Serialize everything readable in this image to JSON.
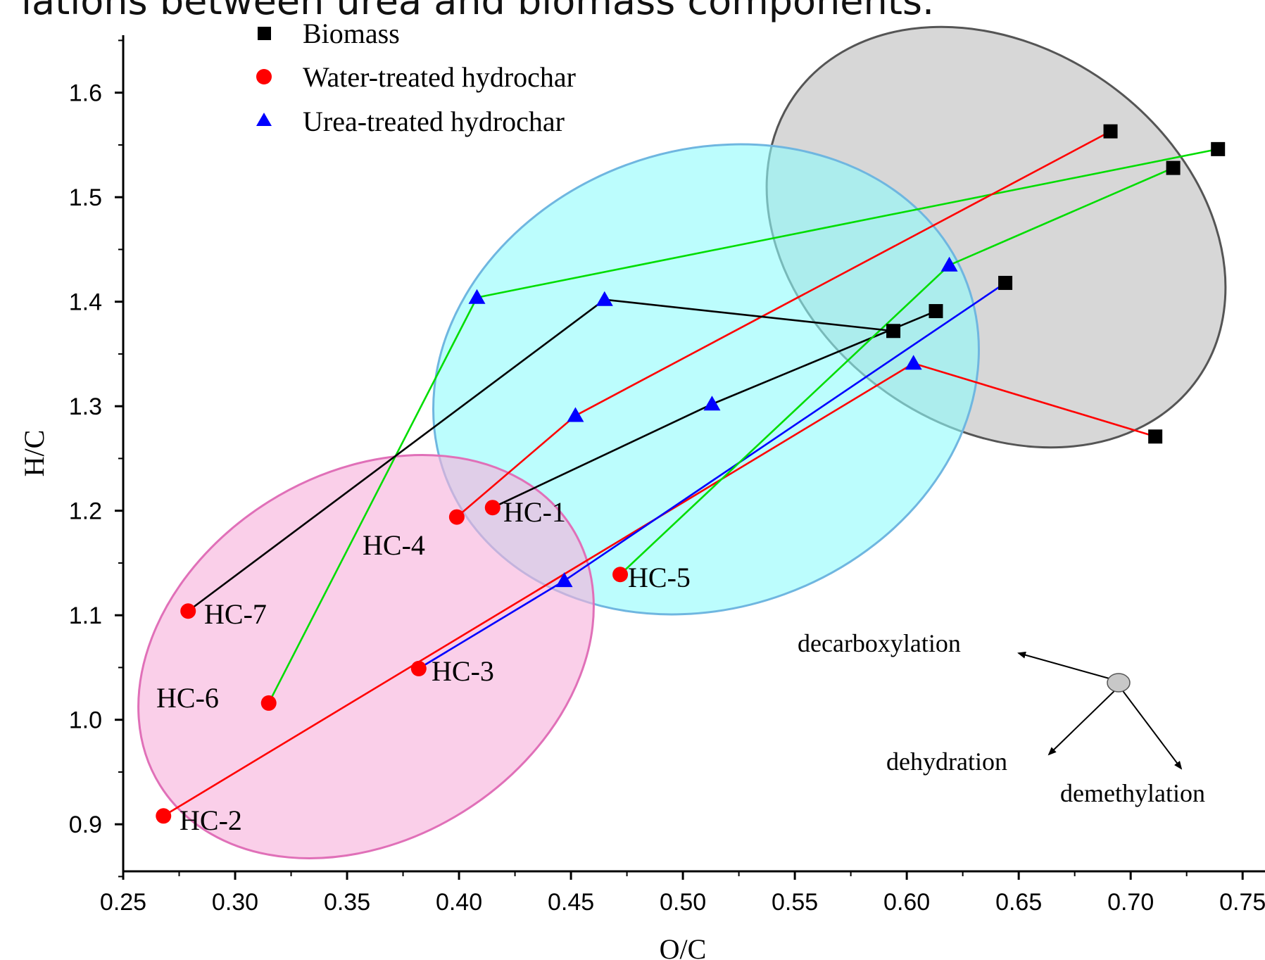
{
  "page_heading_fragment": "lations between urea and biomass components.",
  "chart_data": {
    "type": "scatter",
    "xlabel": "O/C",
    "ylabel": "H/C",
    "xlim": [
      0.25,
      0.76
    ],
    "ylim": [
      0.855,
      1.655
    ],
    "x_ticks": [
      0.25,
      0.3,
      0.35,
      0.4,
      0.45,
      0.5,
      0.55,
      0.6,
      0.65,
      0.7,
      0.75
    ],
    "x_tick_labels": [
      "0.25",
      "0.30",
      "0.35",
      "0.40",
      "0.45",
      "0.50",
      "0.55",
      "0.60",
      "0.65",
      "0.70",
      "0.75"
    ],
    "y_ticks": [
      0.9,
      1.0,
      1.1,
      1.2,
      1.3,
      1.4,
      1.5,
      1.6
    ],
    "y_tick_labels": [
      "0.9",
      "1.0",
      "1.1",
      "1.2",
      "1.3",
      "1.4",
      "1.5",
      "1.6"
    ],
    "grid": false,
    "legend_position": "top-left",
    "legend": [
      {
        "label": "Biomass",
        "marker": "square",
        "color": "#000000"
      },
      {
        "label": "Water-treated hydrochar",
        "marker": "circle",
        "color": "#ff0000"
      },
      {
        "label": "Urea-treated hydrochar",
        "marker": "triangle",
        "color": "#0000ff"
      }
    ],
    "regions": [
      {
        "group": "biomass",
        "fill": "#c8c8c8",
        "stroke": "#555555"
      },
      {
        "group": "urea-treated",
        "fill": "#8ffbfb",
        "stroke": "#6fb6e0"
      },
      {
        "group": "water-treated",
        "fill": "#f7b1dc",
        "stroke": "#e070b8"
      }
    ],
    "series": [
      {
        "label": "HC-1",
        "color": "#000000",
        "biomass": [
          0.613,
          1.391
        ],
        "urea": [
          0.513,
          1.302
        ],
        "water": [
          0.415,
          1.203
        ]
      },
      {
        "label": "HC-2",
        "color": "#ff0000",
        "biomass": [
          0.711,
          1.271
        ],
        "urea": [
          0.603,
          1.341
        ],
        "water": [
          0.268,
          0.908
        ]
      },
      {
        "label": "HC-3",
        "color": "#0000ff",
        "biomass": [
          0.644,
          1.418
        ],
        "urea": [
          0.447,
          1.133
        ],
        "water": [
          0.382,
          1.049
        ]
      },
      {
        "label": "HC-4",
        "color": "#00dd00",
        "biomass": [
          0.739,
          1.546
        ],
        "urea": [
          0.408,
          1.404
        ],
        "water": [
          0.315,
          1.016
        ]
      },
      {
        "label": "HC-5",
        "color": "#00dd00",
        "biomass": [
          0.719,
          1.528
        ],
        "urea": [
          0.619,
          1.435
        ],
        "water": [
          0.472,
          1.139
        ]
      },
      {
        "label": "HC-6",
        "color": "#ff0000",
        "biomass": [
          0.691,
          1.563
        ],
        "urea": [
          0.452,
          1.291
        ],
        "water": [
          0.399,
          1.194
        ]
      },
      {
        "label": "HC-7",
        "color": "#000000",
        "biomass": [
          0.594,
          1.372
        ],
        "urea": [
          0.465,
          1.402
        ],
        "water": [
          0.279,
          1.104
        ]
      }
    ],
    "annotations": {
      "pathways": [
        "decarboxylation",
        "dehydration",
        "demethylation"
      ]
    }
  }
}
